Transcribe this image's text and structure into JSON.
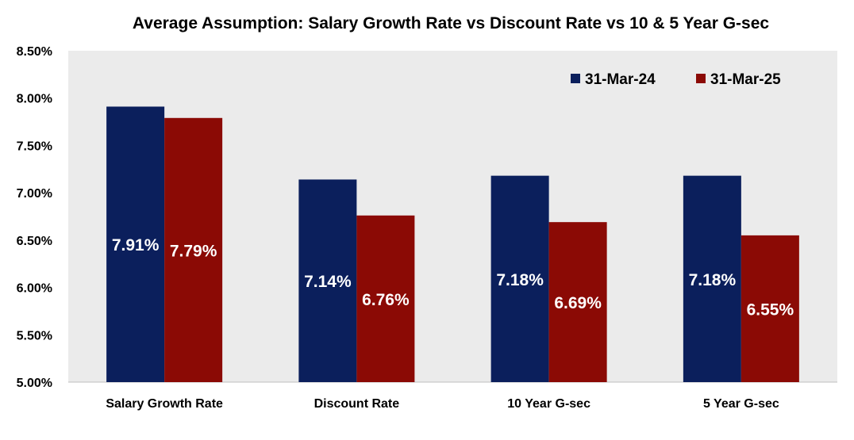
{
  "chart_data": {
    "type": "bar",
    "title": "Average Assumption: Salary Growth Rate vs Discount Rate vs 10 & 5 Year G-sec",
    "categories": [
      "Salary Growth Rate",
      "Discount Rate",
      "10 Year G-sec",
      "5 Year G-sec"
    ],
    "series": [
      {
        "name": "31-Mar-24",
        "color": "#0b1f5c",
        "values": [
          7.91,
          7.14,
          7.18,
          7.18
        ],
        "labels": [
          "7.91%",
          "7.14%",
          "7.18%",
          "7.18%"
        ]
      },
      {
        "name": "31-Mar-25",
        "color": "#8b0a05",
        "values": [
          7.79,
          6.76,
          6.69,
          6.55
        ],
        "labels": [
          "7.79%",
          "6.76%",
          "6.69%",
          "6.55%"
        ]
      }
    ],
    "yticks": [
      "5.00%",
      "5.50%",
      "6.00%",
      "6.50%",
      "7.00%",
      "7.50%",
      "8.00%",
      "8.50%"
    ],
    "ylim": [
      5.0,
      8.5
    ],
    "ytick_step": 0.5,
    "xlabel": "",
    "ylabel": "",
    "grid": false,
    "plot_background": "#ebebeb",
    "legend_position": "top-right"
  }
}
